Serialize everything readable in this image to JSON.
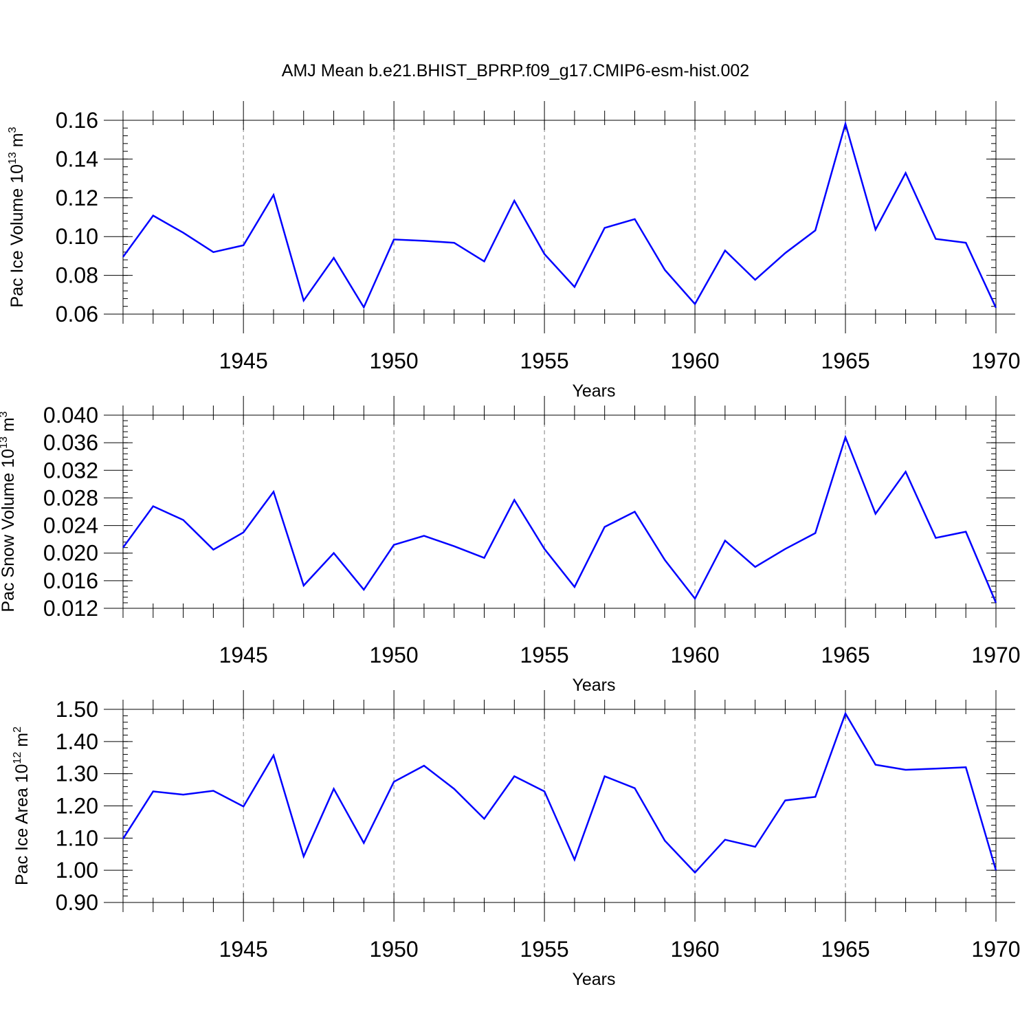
{
  "title": "AMJ Mean b.e21.BHIST_BPRP.f09_g17.CMIP6-esm-hist.002",
  "colors": {
    "line": "#0000ff",
    "axis": "#000000",
    "grid": "#808080",
    "background": "#ffffff"
  },
  "chart_data": [
    {
      "type": "line",
      "name": "Pac Ice Volume",
      "ylabel": {
        "prefix": "Pac Ice Volume 10",
        "exp": "13",
        "unit": " m",
        "unit_exp": "3"
      },
      "xlabel": "Years",
      "xlim": [
        1941,
        1970
      ],
      "ylim": [
        0.06,
        0.16
      ],
      "yticks": [
        "0.06",
        "0.08",
        "0.10",
        "0.12",
        "0.14",
        "0.16"
      ],
      "xticks": [
        "1945",
        "1950",
        "1955",
        "1960",
        "1965",
        "1970"
      ],
      "grid": "vertical dashed at major x ticks",
      "x": [
        1941,
        1942,
        1943,
        1944,
        1945,
        1946,
        1947,
        1948,
        1949,
        1950,
        1951,
        1952,
        1953,
        1954,
        1955,
        1956,
        1957,
        1958,
        1959,
        1960,
        1961,
        1962,
        1963,
        1964,
        1965,
        1966,
        1967,
        1968,
        1969,
        1970
      ],
      "values": [
        0.0895,
        0.1108,
        0.102,
        0.092,
        0.0955,
        0.1215,
        0.067,
        0.089,
        0.0635,
        0.0985,
        0.0978,
        0.0968,
        0.0872,
        0.1185,
        0.091,
        0.074,
        0.1045,
        0.109,
        0.0828,
        0.0652,
        0.0928,
        0.0777,
        0.0915,
        0.1032,
        0.1582,
        0.1036,
        0.1328,
        0.0988,
        0.0968,
        0.0633
      ]
    },
    {
      "type": "line",
      "name": "Pac Snow Volume",
      "ylabel": {
        "prefix": "Pac Snow Volume 10",
        "exp": "13",
        "unit": " m",
        "unit_exp": "3"
      },
      "xlabel": "Years",
      "xlim": [
        1941,
        1970
      ],
      "ylim": [
        0.012,
        0.04
      ],
      "yticks": [
        "0.012",
        "0.016",
        "0.020",
        "0.024",
        "0.028",
        "0.032",
        "0.036",
        "0.040"
      ],
      "xticks": [
        "1945",
        "1950",
        "1955",
        "1960",
        "1965",
        "1970"
      ],
      "grid": "vertical dashed at major x ticks",
      "x": [
        1941,
        1942,
        1943,
        1944,
        1945,
        1946,
        1947,
        1948,
        1949,
        1950,
        1951,
        1952,
        1953,
        1954,
        1955,
        1956,
        1957,
        1958,
        1959,
        1960,
        1961,
        1962,
        1963,
        1964,
        1965,
        1966,
        1967,
        1968,
        1969,
        1970
      ],
      "values": [
        0.0208,
        0.0268,
        0.0248,
        0.0205,
        0.023,
        0.0289,
        0.0153,
        0.02,
        0.0147,
        0.0212,
        0.0225,
        0.021,
        0.0193,
        0.0277,
        0.0206,
        0.0151,
        0.0238,
        0.026,
        0.019,
        0.0134,
        0.0218,
        0.018,
        0.0206,
        0.0229,
        0.0368,
        0.0257,
        0.0318,
        0.0222,
        0.0231,
        0.0128
      ]
    },
    {
      "type": "line",
      "name": "Pac Ice Area",
      "ylabel": {
        "prefix": "Pac Ice Area 10",
        "exp": "12",
        "unit": " m",
        "unit_exp": "2"
      },
      "xlabel": "Years",
      "xlim": [
        1941,
        1970
      ],
      "ylim": [
        0.9,
        1.5
      ],
      "yticks": [
        "0.90",
        "1.00",
        "1.10",
        "1.20",
        "1.30",
        "1.40",
        "1.50"
      ],
      "xticks": [
        "1945",
        "1950",
        "1955",
        "1960",
        "1965",
        "1970"
      ],
      "grid": "vertical dashed at major x ticks",
      "x": [
        1941,
        1942,
        1943,
        1944,
        1945,
        1946,
        1947,
        1948,
        1949,
        1950,
        1951,
        1952,
        1953,
        1954,
        1955,
        1956,
        1957,
        1958,
        1959,
        1960,
        1961,
        1962,
        1963,
        1964,
        1965,
        1966,
        1967,
        1968,
        1969,
        1970
      ],
      "values": [
        1.098,
        1.245,
        1.235,
        1.247,
        1.198,
        1.357,
        1.043,
        1.253,
        1.085,
        1.275,
        1.325,
        1.253,
        1.16,
        1.292,
        1.245,
        1.033,
        1.292,
        1.255,
        1.092,
        0.993,
        1.095,
        1.073,
        1.217,
        1.228,
        1.487,
        1.328,
        1.312,
        1.316,
        1.32,
        1.0
      ]
    }
  ]
}
